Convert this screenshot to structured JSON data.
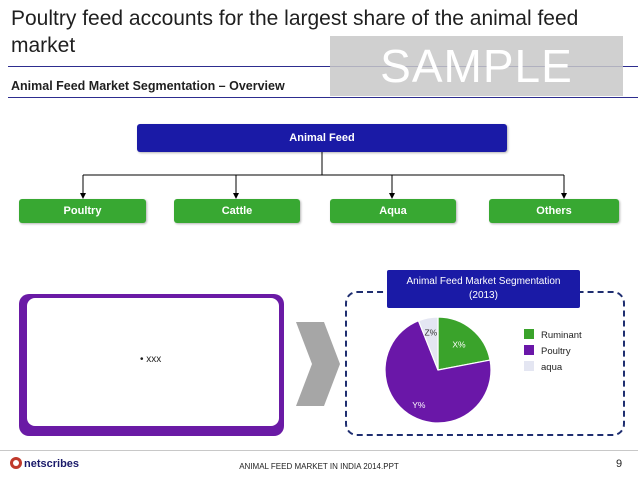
{
  "slide": {
    "title": "Poultry feed accounts for the largest share of the animal feed market",
    "subtitle": "Animal Feed Market Segmentation – Overview",
    "watermark": "SAMPLE",
    "footer": "ANIMAL FEED MARKET IN INDIA 2014.PPT",
    "page_number": "9",
    "logo_text": "netscribes"
  },
  "tree": {
    "root": "Animal Feed",
    "leaves": [
      "Poultry",
      "Cattle",
      "Aqua",
      "Others"
    ]
  },
  "left_box": {
    "bullet": "• xxx"
  },
  "chart_data": {
    "type": "pie",
    "title": "Animal Feed Market Segmentation",
    "subtitle": "(2013)",
    "labels": [
      "Ruminant",
      "Poultry",
      "aqua"
    ],
    "slice_labels": [
      "X%",
      "Y%",
      "Z%"
    ],
    "values": [
      22,
      72,
      6
    ],
    "colors": [
      "#3aa32b",
      "#6a17a8",
      "#e4e6f2"
    ],
    "legend_placement": "right"
  }
}
